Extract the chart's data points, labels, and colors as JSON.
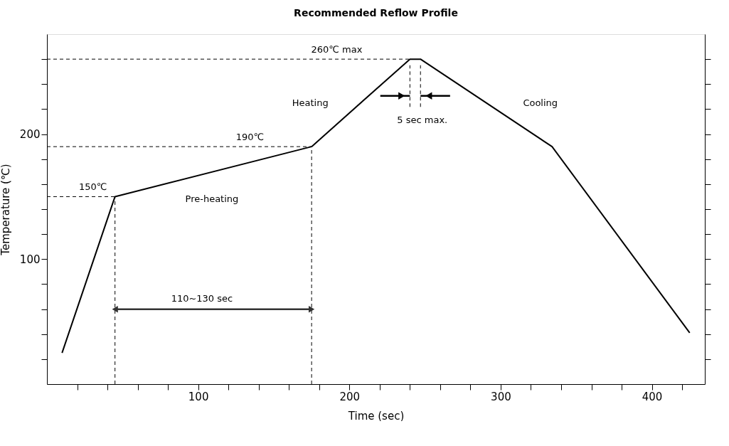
{
  "chart_data": {
    "type": "line",
    "title": "Recommended Reflow Profile",
    "xlabel": "Time (sec)",
    "ylabel": "Temperature (℃)",
    "xlim": [
      0,
      435
    ],
    "ylim": [
      0,
      280
    ],
    "xticks": [
      {
        "value": 20,
        "label": null
      },
      {
        "value": 40,
        "label": null
      },
      {
        "value": 60,
        "label": null
      },
      {
        "value": 80,
        "label": null
      },
      100,
      {
        "value": 120,
        "label": null
      },
      {
        "value": 140,
        "label": null
      },
      {
        "value": 160,
        "label": null
      },
      {
        "value": 180,
        "label": null
      },
      200,
      {
        "value": 220,
        "label": null
      },
      {
        "value": 240,
        "label": null
      },
      {
        "value": 260,
        "label": null
      },
      {
        "value": 280,
        "label": null
      },
      300,
      {
        "value": 320,
        "label": null
      },
      {
        "value": 340,
        "label": null
      },
      {
        "value": 360,
        "label": null
      },
      {
        "value": 380,
        "label": null
      },
      400,
      {
        "value": 420,
        "label": null
      }
    ],
    "yticks": [
      {
        "value": 20,
        "label": null
      },
      {
        "value": 40,
        "label": null
      },
      {
        "value": 60,
        "label": null
      },
      {
        "value": 80,
        "label": null
      },
      100,
      {
        "value": 120,
        "label": null
      },
      {
        "value": 140,
        "label": null
      },
      {
        "value": 160,
        "label": null
      },
      {
        "value": 180,
        "label": null
      },
      200,
      {
        "value": 220,
        "label": null
      },
      {
        "value": 240,
        "label": null
      },
      {
        "value": 260,
        "label": null
      }
    ],
    "series": [
      {
        "x": [
          10,
          45,
          175,
          240,
          247,
          334,
          425
        ],
        "values": [
          25,
          150,
          190,
          260,
          260,
          190,
          41
        ],
        "color": "#000000"
      }
    ],
    "ref_lines": [
      {
        "axis": "y",
        "value": 260,
        "label": "260℃ max",
        "line_style": "dashed",
        "color": "#000000"
      },
      {
        "axis": "y",
        "value": 190,
        "label": "190℃",
        "line_style": "dashed",
        "color": "#000000"
      },
      {
        "axis": "y",
        "value": 150,
        "label": "150℃",
        "line_style": "dashed",
        "color": "#000000"
      },
      {
        "axis": "x",
        "value": 45,
        "line_style": "dashed",
        "color": "#000000"
      },
      {
        "axis": "x",
        "value": 175,
        "line_style": "dashed",
        "color": "#000000"
      }
    ],
    "annotations": [
      "Pre-heating",
      "Heating",
      "Cooling",
      "5 sec max.",
      "110~130 sec"
    ]
  }
}
